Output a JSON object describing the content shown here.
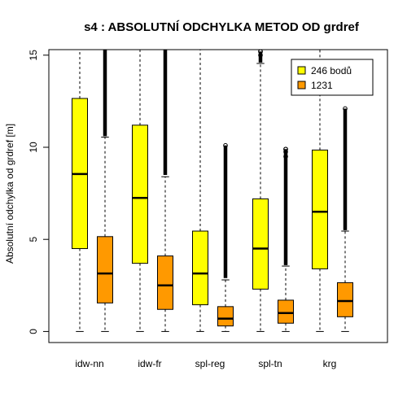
{
  "chart_data": {
    "type": "box",
    "title": "s4 : ABSOLUTNÍ ODCHYLKA METOD OD grdref",
    "ylabel": "Absolutní odchylka od grdref [m]",
    "xlabel": "",
    "ylim": [
      -0.6,
      15.3
    ],
    "yticks": [
      0,
      5,
      10,
      15
    ],
    "yticks_labels": [
      "0",
      "5",
      "10",
      "15"
    ],
    "categories": [
      "idw-nn",
      "idw-fr",
      "spl-reg",
      "spl-tn",
      "krg"
    ],
    "legend_position": "top-right",
    "series": [
      {
        "name": "246 bodů",
        "color": "#ffff00",
        "boxes": [
          {
            "min": 0,
            "q1": 4.5,
            "median": 8.55,
            "q3": 12.65,
            "whisker_high": 15.3,
            "outliers": []
          },
          {
            "min": 0,
            "q1": 3.7,
            "median": 7.25,
            "q3": 11.2,
            "whisker_high": 15.3,
            "outliers": []
          },
          {
            "min": 0,
            "q1": 1.45,
            "median": 3.15,
            "q3": 5.45,
            "whisker_high": 15.3,
            "outliers": []
          },
          {
            "min": 0,
            "q1": 2.3,
            "median": 4.5,
            "q3": 7.2,
            "whisker_high": 14.55,
            "outliers": [
              14.6,
              14.8,
              15.0,
              15.2
            ]
          },
          {
            "min": 0,
            "q1": 3.4,
            "median": 6.5,
            "q3": 9.85,
            "whisker_high": 15.3,
            "outliers": []
          }
        ]
      },
      {
        "name": "1231",
        "color": "#ff9900",
        "boxes": [
          {
            "min": 0,
            "q1": 1.55,
            "median": 3.15,
            "q3": 5.15,
            "whisker_high": 10.55,
            "outliers": [
              10.6,
              15.3
            ]
          },
          {
            "min": 0,
            "q1": 1.2,
            "median": 2.5,
            "q3": 4.1,
            "whisker_high": 8.4,
            "outliers": [
              8.5,
              15.3
            ]
          },
          {
            "min": 0,
            "q1": 0.3,
            "median": 0.7,
            "q3": 1.35,
            "whisker_high": 2.8,
            "outliers": [
              2.9,
              10.1
            ]
          },
          {
            "min": 0,
            "q1": 0.45,
            "median": 1.0,
            "q3": 1.7,
            "whisker_high": 3.55,
            "outliers": [
              3.6,
              9.1,
              9.5,
              9.75,
              9.9
            ]
          },
          {
            "min": 0,
            "q1": 0.8,
            "median": 1.65,
            "q3": 2.65,
            "whisker_high": 5.45,
            "outliers": [
              5.5,
              12.1
            ]
          }
        ]
      }
    ]
  }
}
